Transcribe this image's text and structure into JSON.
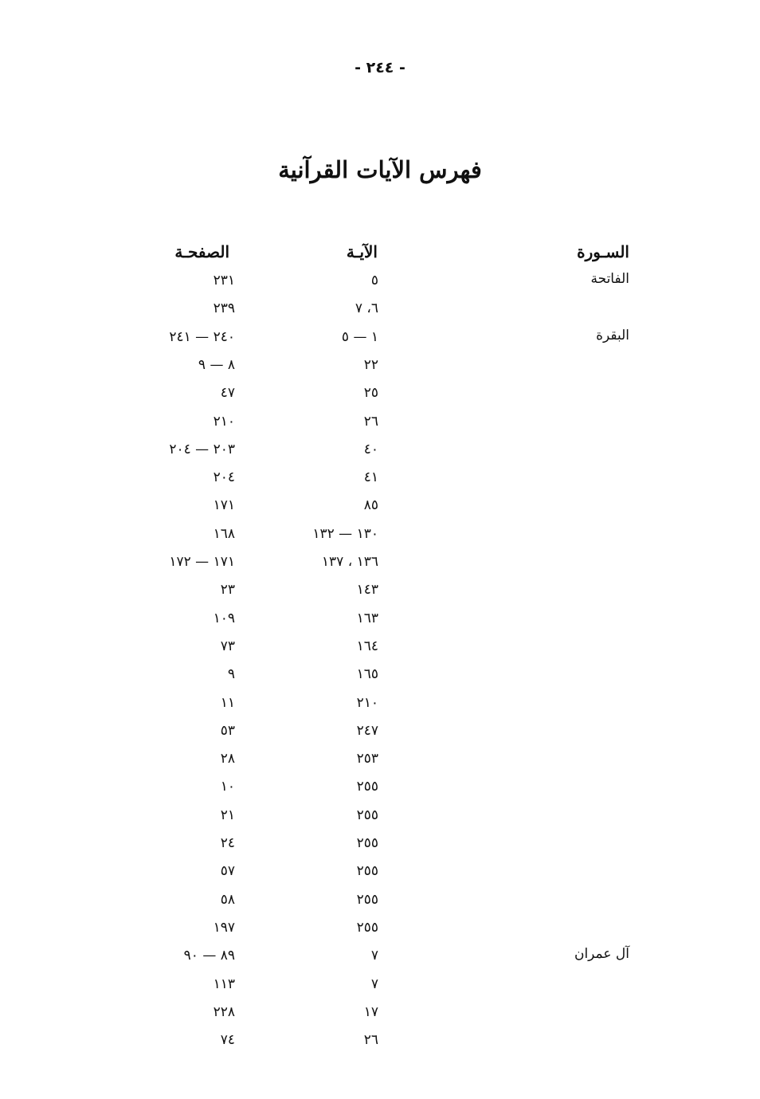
{
  "page_number": "- ٢٤٤ -",
  "title": "فهرس الآيات القرآنية",
  "headers": {
    "surah": "السـورة",
    "verse": "الآيـة",
    "page": "الصفحـة"
  },
  "rows": [
    {
      "surah": "الفاتحة",
      "verse": "٥",
      "page": "٢٣١"
    },
    {
      "surah": "",
      "verse": "٦، ٧",
      "page": "٢٣٩"
    },
    {
      "surah": "البقرة",
      "verse": "١ — ٥",
      "page": "٢٤٠ — ٢٤١"
    },
    {
      "surah": "",
      "verse": "٢٢",
      "page": "٨ — ٩"
    },
    {
      "surah": "",
      "verse": "٢٥",
      "page": "٤٧"
    },
    {
      "surah": "",
      "verse": "٢٦",
      "page": "٢١٠"
    },
    {
      "surah": "",
      "verse": "٤٠",
      "page": "٢٠٣ — ٢٠٤"
    },
    {
      "surah": "",
      "verse": "٤١",
      "page": "٢٠٤"
    },
    {
      "surah": "",
      "verse": "٨٥",
      "page": "١٧١"
    },
    {
      "surah": "",
      "verse": "١٣٠ — ١٣٢",
      "page": "١٦٨"
    },
    {
      "surah": "",
      "verse": "١٣٦ ، ١٣٧",
      "page": "١٧١ — ١٧٢"
    },
    {
      "surah": "",
      "verse": "١٤٣",
      "page": "٢٣"
    },
    {
      "surah": "",
      "verse": "١٦٣",
      "page": "١٠٩"
    },
    {
      "surah": "",
      "verse": "١٦٤",
      "page": "٧٣"
    },
    {
      "surah": "",
      "verse": "١٦٥",
      "page": "٩"
    },
    {
      "surah": "",
      "verse": "٢١٠",
      "page": "١١"
    },
    {
      "surah": "",
      "verse": "٢٤٧",
      "page": "٥٣"
    },
    {
      "surah": "",
      "verse": "٢٥٣",
      "page": "٢٨"
    },
    {
      "surah": "",
      "verse": "٢٥٥",
      "page": "١٠"
    },
    {
      "surah": "",
      "verse": "٢٥٥",
      "page": "٢١"
    },
    {
      "surah": "",
      "verse": "٢٥٥",
      "page": "٢٤"
    },
    {
      "surah": "",
      "verse": "٢٥٥",
      "page": "٥٧"
    },
    {
      "surah": "",
      "verse": "٢٥٥",
      "page": "٥٨"
    },
    {
      "surah": "",
      "verse": "٢٥٥",
      "page": "١٩٧"
    },
    {
      "surah": "آل عمران",
      "verse": "٧",
      "page": "٨٩ — ٩٠"
    },
    {
      "surah": "",
      "verse": "٧",
      "page": "١١٣"
    },
    {
      "surah": "",
      "verse": "١٧",
      "page": "٢٢٨"
    },
    {
      "surah": "",
      "verse": "٢٦",
      "page": "٧٤"
    }
  ]
}
